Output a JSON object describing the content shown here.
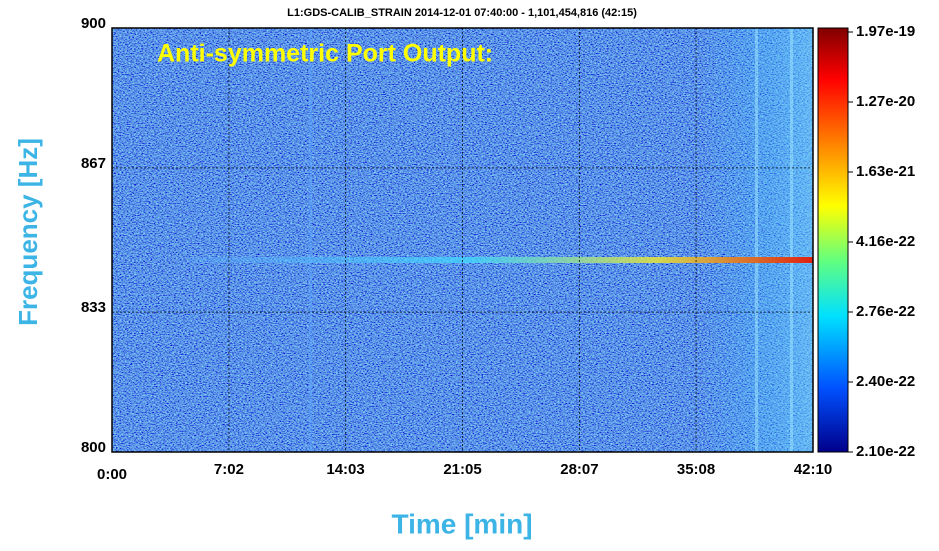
{
  "chart_data": {
    "type": "spectrogram",
    "title": "L1:GDS-CALIB_STRAIN 2014-12-01 07:40:00 - 1,101,454,816 (42:15)",
    "annotation": "Anti-symmetric Port Output:",
    "x_label": "Time [min]",
    "y_label": "Frequency [Hz]",
    "xlim": [
      0,
      2530
    ],
    "xticks": [
      {
        "value": 0,
        "label": "0:00"
      },
      {
        "value": 422,
        "label": "7:02"
      },
      {
        "value": 843,
        "label": "14:03"
      },
      {
        "value": 1265,
        "label": "21:05"
      },
      {
        "value": 1687,
        "label": "28:07"
      },
      {
        "value": 2108,
        "label": "35:08"
      },
      {
        "value": 2530,
        "label": "42:10"
      }
    ],
    "ylim": [
      800,
      900
    ],
    "yticks": [
      800,
      833,
      867,
      900
    ],
    "grid": true,
    "colorbar": {
      "ticks": [
        {
          "value": 1.97e-19,
          "label": "1.97e-19"
        },
        {
          "value": 1.27e-20,
          "label": "1.27e-20"
        },
        {
          "value": 1.63e-21,
          "label": "1.63e-21"
        },
        {
          "value": 4.16e-22,
          "label": "4.16e-22"
        },
        {
          "value": 2.76e-22,
          "label": "2.76e-22"
        },
        {
          "value": 2.4e-22,
          "label": "2.40e-22"
        },
        {
          "value": 2.1e-22,
          "label": "2.10e-22"
        }
      ]
    }
  }
}
